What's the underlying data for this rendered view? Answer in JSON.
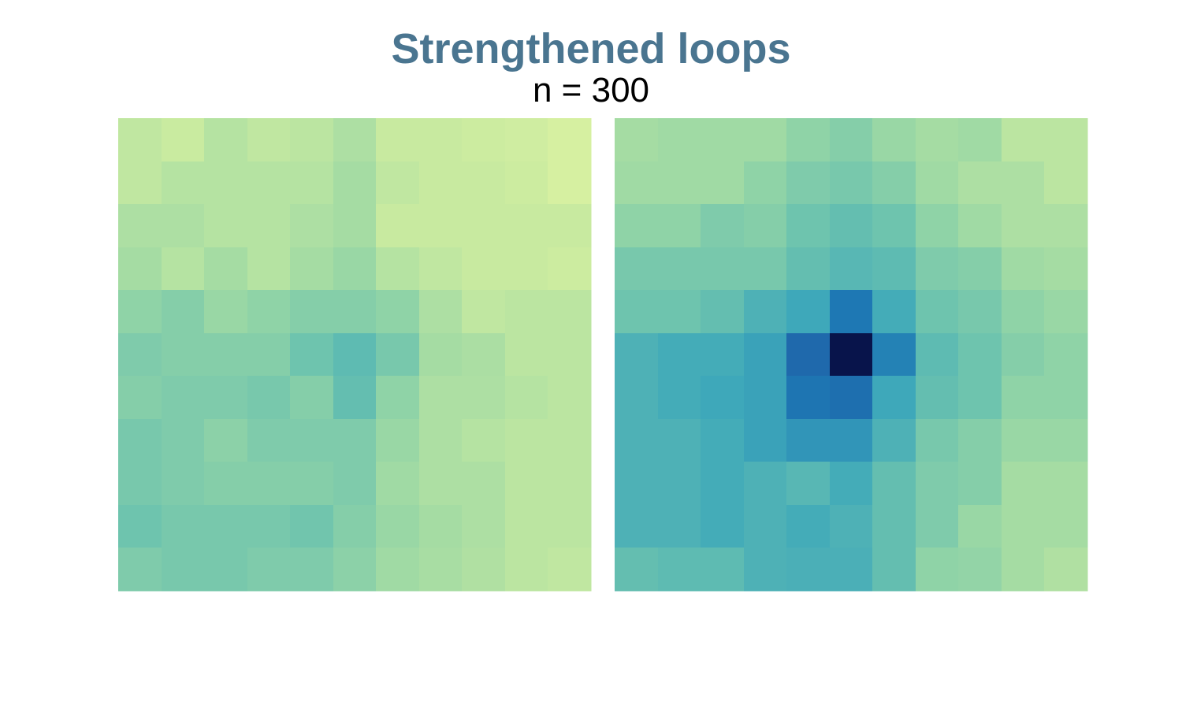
{
  "title": "Strengthened loops",
  "subtitle": "n = 300",
  "colors": {
    "title": "#4a7590",
    "scale_low": "#ddf3a2",
    "scale_high": "#081d58"
  },
  "chart_data": [
    {
      "type": "heatmap",
      "grid": [
        11,
        11
      ],
      "colormap": "YlGnBu",
      "vrange": [
        0,
        1
      ],
      "values": [
        [
          0.18,
          0.14,
          0.22,
          0.18,
          0.2,
          0.25,
          0.15,
          0.15,
          0.12,
          0.1,
          0.05
        ],
        [
          0.18,
          0.22,
          0.22,
          0.22,
          0.22,
          0.28,
          0.18,
          0.15,
          0.15,
          0.12,
          0.05
        ],
        [
          0.25,
          0.25,
          0.22,
          0.22,
          0.25,
          0.28,
          0.15,
          0.15,
          0.15,
          0.15,
          0.15
        ],
        [
          0.28,
          0.22,
          0.28,
          0.22,
          0.28,
          0.32,
          0.22,
          0.18,
          0.15,
          0.15,
          0.12
        ],
        [
          0.35,
          0.38,
          0.32,
          0.35,
          0.38,
          0.38,
          0.35,
          0.25,
          0.18,
          0.2,
          0.2
        ],
        [
          0.4,
          0.38,
          0.38,
          0.38,
          0.45,
          0.5,
          0.42,
          0.28,
          0.26,
          0.2,
          0.2
        ],
        [
          0.38,
          0.4,
          0.4,
          0.42,
          0.38,
          0.48,
          0.35,
          0.25,
          0.25,
          0.22,
          0.2
        ],
        [
          0.42,
          0.4,
          0.36,
          0.4,
          0.4,
          0.4,
          0.32,
          0.25,
          0.22,
          0.2,
          0.2
        ],
        [
          0.42,
          0.4,
          0.38,
          0.38,
          0.38,
          0.4,
          0.3,
          0.25,
          0.25,
          0.2,
          0.2
        ],
        [
          0.45,
          0.42,
          0.42,
          0.42,
          0.44,
          0.38,
          0.32,
          0.28,
          0.25,
          0.2,
          0.2
        ],
        [
          0.4,
          0.42,
          0.42,
          0.4,
          0.4,
          0.36,
          0.3,
          0.27,
          0.24,
          0.2,
          0.18
        ]
      ]
    },
    {
      "type": "heatmap",
      "grid": [
        11,
        11
      ],
      "colormap": "YlGnBu",
      "vrange": [
        0,
        1
      ],
      "values": [
        [
          0.28,
          0.3,
          0.3,
          0.3,
          0.35,
          0.38,
          0.32,
          0.28,
          0.3,
          0.2,
          0.2
        ],
        [
          0.3,
          0.3,
          0.3,
          0.35,
          0.4,
          0.42,
          0.38,
          0.3,
          0.25,
          0.25,
          0.2
        ],
        [
          0.35,
          0.35,
          0.4,
          0.38,
          0.45,
          0.48,
          0.45,
          0.35,
          0.3,
          0.25,
          0.25
        ],
        [
          0.42,
          0.42,
          0.42,
          0.42,
          0.48,
          0.52,
          0.5,
          0.4,
          0.38,
          0.3,
          0.28
        ],
        [
          0.45,
          0.45,
          0.48,
          0.55,
          0.6,
          0.75,
          0.58,
          0.45,
          0.42,
          0.35,
          0.32
        ],
        [
          0.55,
          0.58,
          0.58,
          0.62,
          0.8,
          1.0,
          0.72,
          0.5,
          0.45,
          0.38,
          0.35
        ],
        [
          0.55,
          0.58,
          0.6,
          0.62,
          0.76,
          0.78,
          0.6,
          0.48,
          0.45,
          0.35,
          0.35
        ],
        [
          0.55,
          0.55,
          0.58,
          0.62,
          0.66,
          0.66,
          0.55,
          0.42,
          0.38,
          0.32,
          0.32
        ],
        [
          0.55,
          0.55,
          0.58,
          0.55,
          0.52,
          0.58,
          0.48,
          0.4,
          0.38,
          0.28,
          0.28
        ],
        [
          0.55,
          0.55,
          0.58,
          0.55,
          0.58,
          0.55,
          0.48,
          0.4,
          0.32,
          0.28,
          0.28
        ],
        [
          0.48,
          0.5,
          0.5,
          0.55,
          0.56,
          0.56,
          0.48,
          0.35,
          0.34,
          0.28,
          0.24
        ]
      ]
    }
  ]
}
